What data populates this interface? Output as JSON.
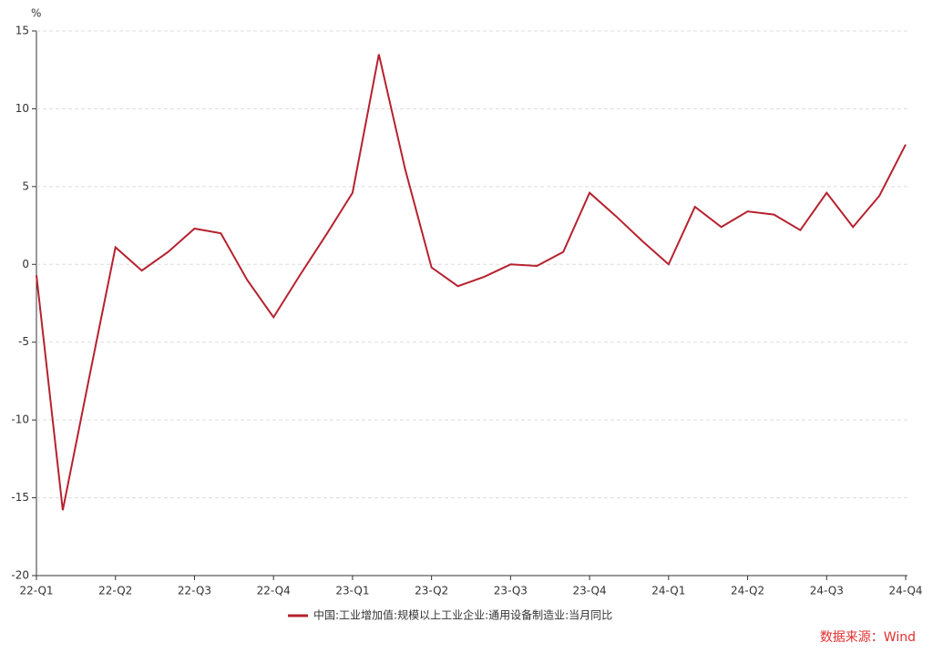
{
  "chart_data": {
    "type": "line",
    "y_unit": "%",
    "categories": [
      "22-Q1",
      null,
      null,
      "22-Q2",
      null,
      null,
      "22-Q3",
      null,
      null,
      "22-Q4",
      null,
      null,
      "23-Q1",
      null,
      null,
      "23-Q2",
      null,
      null,
      "23-Q3",
      null,
      null,
      "23-Q4",
      null,
      null,
      "24-Q1",
      null,
      null,
      "24-Q2",
      null,
      null,
      "24-Q3",
      null,
      null,
      "24-Q4"
    ],
    "series": [
      {
        "name": "中国:工业增加值:规模以上工业企业:通用设备制造业:当月同比",
        "color": "#b5222f",
        "values": [
          -0.7,
          -15.8,
          -7.3,
          1.1,
          -0.4,
          0.8,
          2.3,
          2.0,
          -1.0,
          -3.4,
          -0.7,
          1.9,
          4.6,
          13.5,
          6.1,
          -0.2,
          -1.4,
          -0.8,
          0.0,
          -0.1,
          0.8,
          4.6,
          3.1,
          1.5,
          0.0,
          3.7,
          2.4,
          3.4,
          3.2,
          2.2,
          4.6,
          2.4,
          4.4,
          7.7
        ]
      }
    ],
    "ylim": [
      -20,
      15
    ],
    "yticks": [
      -20,
      -15,
      -10,
      -5,
      0,
      5,
      10,
      15
    ],
    "grid": true,
    "source": "数据来源：Wind"
  }
}
